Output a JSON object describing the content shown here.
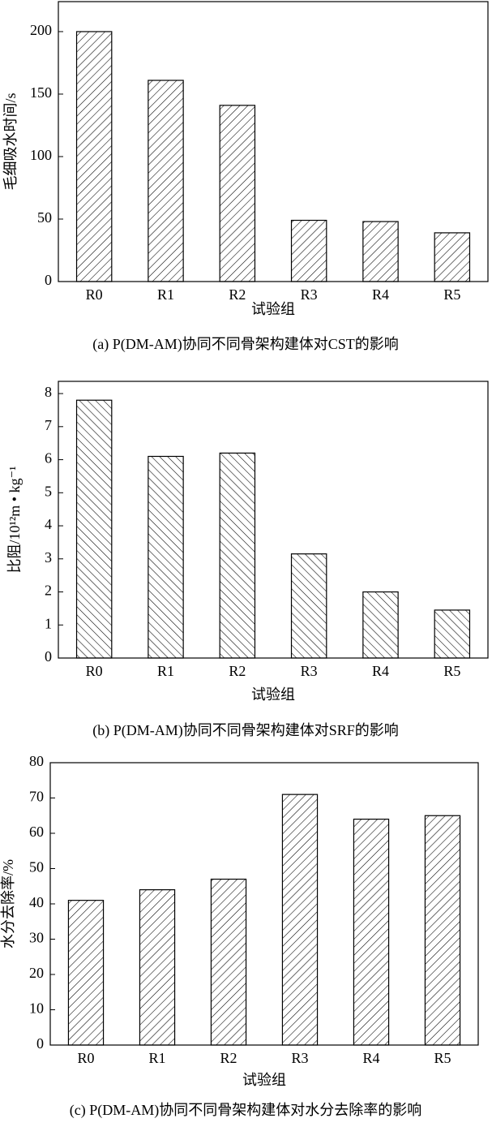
{
  "chart_data": [
    {
      "type": "bar",
      "caption": "(a) P(DM-AM)协同不同骨架构建体对CST的影响",
      "xlabel": "试验组",
      "ylabel": "毛细吸水时间/s",
      "categories": [
        "R0",
        "R1",
        "R2",
        "R3",
        "R4",
        "R5"
      ],
      "values": [
        200,
        161,
        141,
        49,
        48,
        39
      ],
      "ylim": [
        0,
        224
      ],
      "yticks": [
        0,
        50,
        100,
        150,
        200
      ],
      "hatch": "/",
      "color": "#000000"
    },
    {
      "type": "bar",
      "caption": "(b) P(DM-AM)协同不同骨架构建体对SRF的影响",
      "xlabel": "试验组",
      "ylabel": "比阻/10¹²m • kg⁻¹",
      "categories": [
        "R0",
        "R1",
        "R2",
        "R3",
        "R4",
        "R5"
      ],
      "values": [
        7.8,
        6.1,
        6.2,
        3.15,
        2.0,
        1.45
      ],
      "ylim": [
        0,
        8.37
      ],
      "yticks": [
        0,
        1,
        2,
        3,
        4,
        5,
        6,
        7,
        8
      ],
      "hatch": "\\",
      "color": "#000000"
    },
    {
      "type": "bar",
      "caption": "(c) P(DM-AM)协同不同骨架构建体对水分去除率的影响",
      "xlabel": "试验组",
      "ylabel": "水分去除率/%",
      "categories": [
        "R0",
        "R1",
        "R2",
        "R3",
        "R4",
        "R5"
      ],
      "values": [
        41,
        44,
        47,
        71,
        64,
        65
      ],
      "ylim": [
        0,
        80
      ],
      "yticks": [
        0,
        10,
        20,
        30,
        40,
        50,
        60,
        70,
        80
      ],
      "hatch": "/",
      "color": "#000000"
    }
  ]
}
